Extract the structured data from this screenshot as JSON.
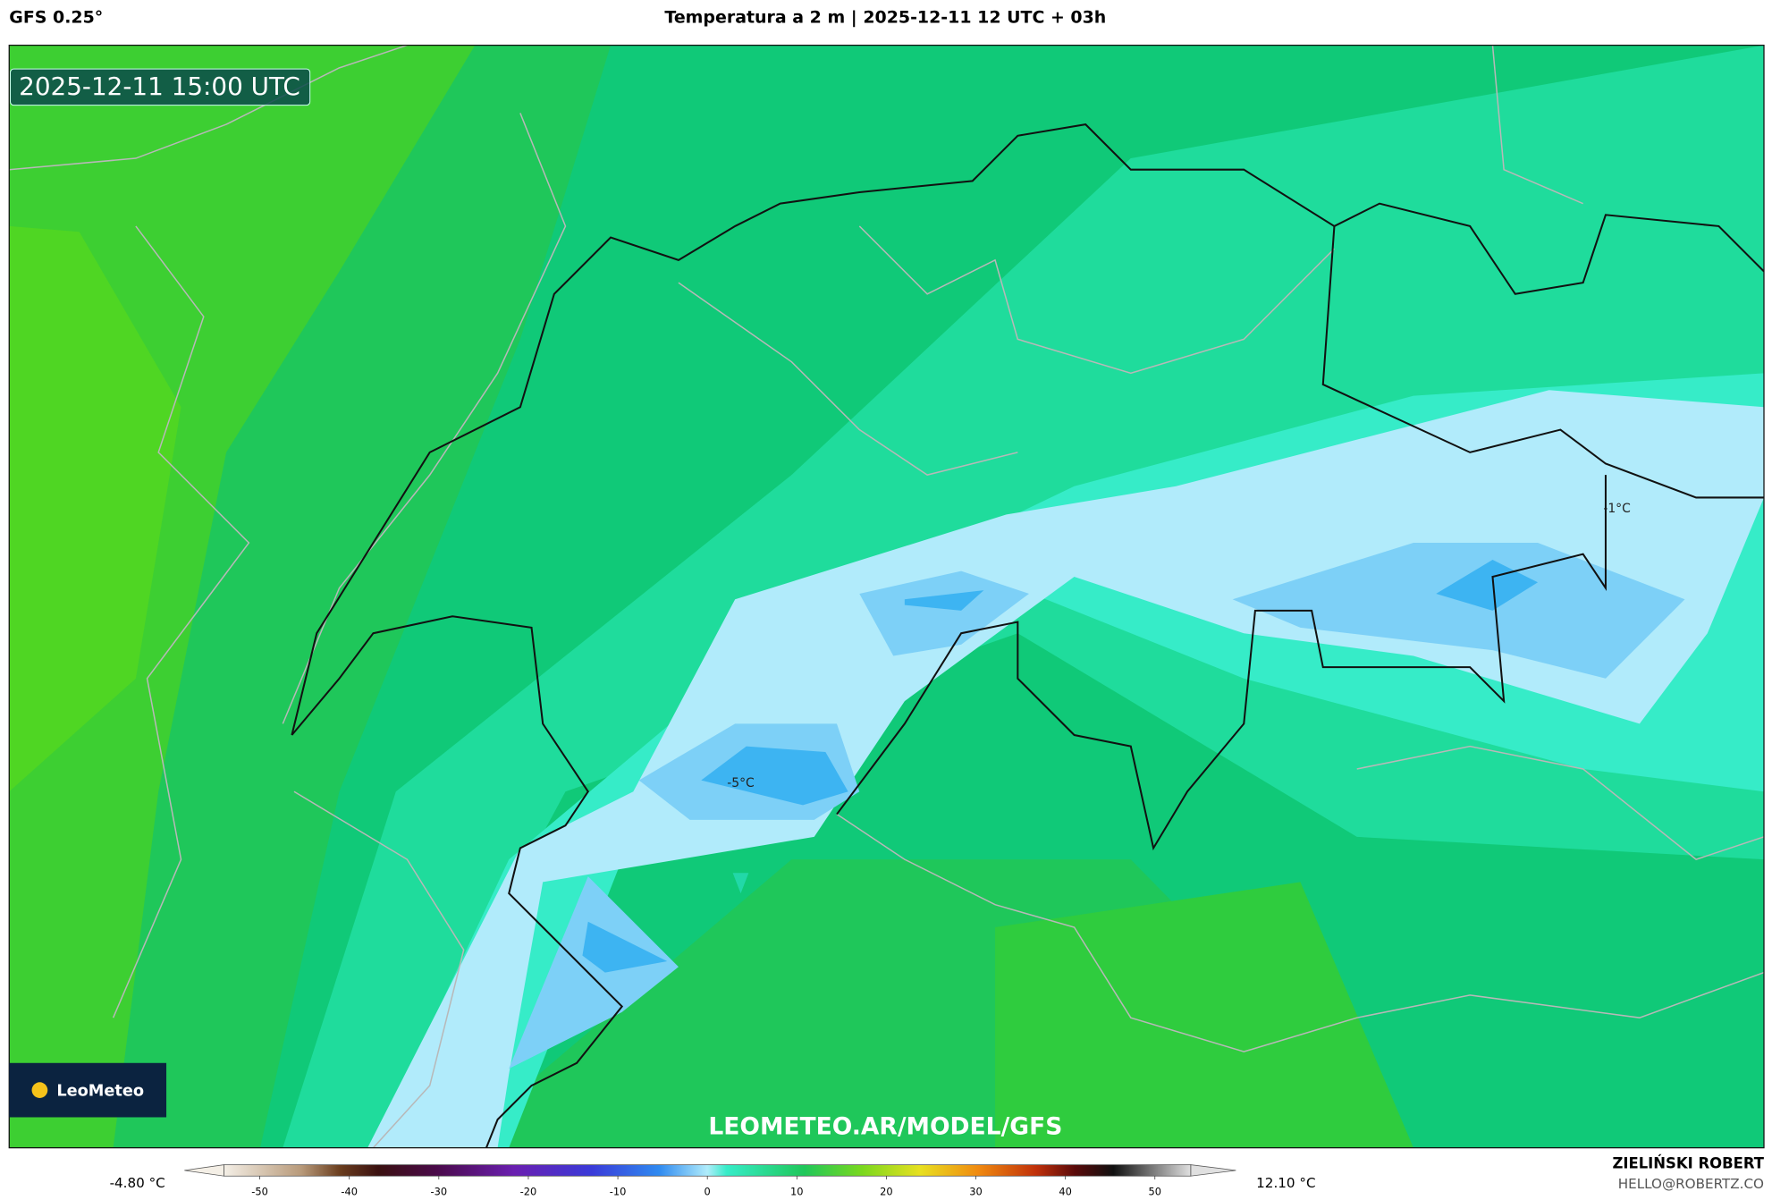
{
  "header": {
    "model": "GFS 0.25°",
    "title": "Temperatura a 2 m | 2025-12-11 12 UTC + 03h"
  },
  "map": {
    "valid_time": "2025-12-11 15:00 UTC",
    "logo": "LeoMeteo",
    "watermark": "LEOMETEO.AR/MODEL/GFS",
    "contour_labels": [
      "-5°C",
      "-1°C"
    ]
  },
  "legend": {
    "min_label": "-4.80 °C",
    "max_label": "12.10 °C",
    "range": [
      -54,
      54
    ],
    "ticks": [
      -50,
      -40,
      -30,
      -20,
      -10,
      0,
      10,
      20,
      30,
      40,
      50
    ]
  },
  "credit": {
    "name": "ZIELIŃSKI ROBERT",
    "contact": "HELLO@ROBERTZ.CO"
  }
}
